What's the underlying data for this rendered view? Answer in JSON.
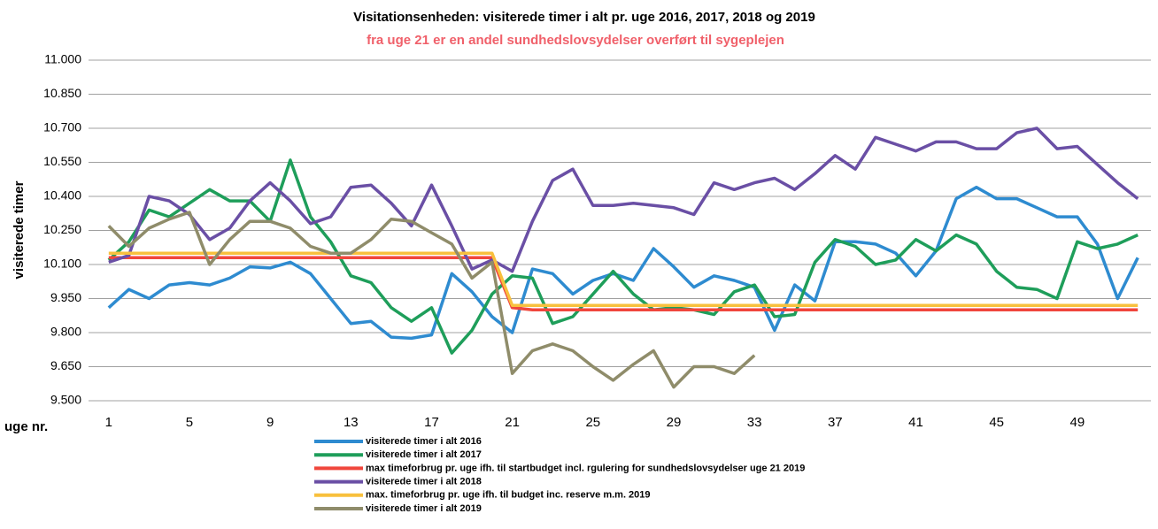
{
  "chart_data": {
    "type": "line",
    "title": "Visitationsenheden: visiterede timer i alt pr. uge 2016, 2017, 2018 og 2019",
    "subtitle": "fra uge 21 er en andel sundhedslovsydelser overført til sygeplejen",
    "y_label": "visiterede timer",
    "x_label": "uge nr.",
    "x": [
      1,
      2,
      3,
      4,
      5,
      6,
      7,
      8,
      9,
      10,
      11,
      12,
      13,
      14,
      15,
      16,
      17,
      18,
      19,
      20,
      21,
      22,
      23,
      24,
      25,
      26,
      27,
      28,
      29,
      30,
      31,
      32,
      33,
      34,
      35,
      36,
      37,
      38,
      39,
      40,
      41,
      42,
      43,
      44,
      45,
      46,
      47,
      48,
      49,
      50,
      51,
      52
    ],
    "xlim": [
      0,
      53
    ],
    "xticks": [
      1,
      5,
      9,
      13,
      17,
      21,
      25,
      29,
      33,
      37,
      41,
      45,
      49
    ],
    "ylim": [
      9500,
      11000
    ],
    "yticks": [
      {
        "value": 9500,
        "label": "9.500"
      },
      {
        "value": 9650,
        "label": "9.650"
      },
      {
        "value": 9800,
        "label": "9.800"
      },
      {
        "value": 9950,
        "label": "9.950"
      },
      {
        "value": 10100,
        "label": "10.100"
      },
      {
        "value": 10250,
        "label": "10.250"
      },
      {
        "value": 10400,
        "label": "10.400"
      },
      {
        "value": 10550,
        "label": "10.550"
      },
      {
        "value": 10700,
        "label": "10.700"
      },
      {
        "value": 10850,
        "label": "10.850"
      },
      {
        "value": 11000,
        "label": "11.000"
      }
    ],
    "grid": true,
    "legend": "bottom",
    "series": [
      {
        "name": "visiterede timer i alt 2016",
        "color": "#2e8bd0",
        "values": [
          9910,
          9990,
          9950,
          10010,
          10020,
          10010,
          10040,
          10090,
          10085,
          10110,
          10060,
          9950,
          9840,
          9850,
          9780,
          9775,
          9790,
          10060,
          9980,
          9870,
          9800,
          10080,
          10060,
          9970,
          10030,
          10060,
          10030,
          10170,
          10090,
          10000,
          10050,
          10030,
          10000,
          9810,
          10010,
          9940,
          10200,
          10200,
          10190,
          10150,
          10050,
          10160,
          10390,
          10440,
          10390,
          10390,
          10350,
          10310,
          10310,
          10190,
          9950,
          10130
        ]
      },
      {
        "name": "visiterede timer i alt 2017",
        "color": "#1e9e5a",
        "values": [
          10120,
          10200,
          10340,
          10310,
          10370,
          10430,
          10380,
          10380,
          10290,
          10560,
          10310,
          10200,
          10050,
          10020,
          9910,
          9850,
          9910,
          9710,
          9810,
          9970,
          10050,
          10040,
          9840,
          9870,
          9970,
          10070,
          9970,
          9900,
          9910,
          9900,
          9880,
          9980,
          10010,
          9870,
          9880,
          10110,
          10210,
          10180,
          10100,
          10120,
          10210,
          10160,
          10230,
          10190,
          10070,
          10000,
          9990,
          9950,
          10200,
          10170,
          10190,
          10230
        ]
      },
      {
        "name": "max timeforbrug pr. uge ifh. til startbudget incl. rgulering for sundhedslovsydelser uge 21 2019",
        "color": "#f0463c",
        "values": [
          10130,
          10130,
          10130,
          10130,
          10130,
          10130,
          10130,
          10130,
          10130,
          10130,
          10130,
          10130,
          10130,
          10130,
          10130,
          10130,
          10130,
          10130,
          10130,
          10130,
          9910,
          9900,
          9900,
          9900,
          9900,
          9900,
          9900,
          9900,
          9900,
          9900,
          9900,
          9900,
          9900,
          9900,
          9900,
          9900,
          9900,
          9900,
          9900,
          9900,
          9900,
          9900,
          9900,
          9900,
          9900,
          9900,
          9900,
          9900,
          9900,
          9900,
          9900,
          9900
        ]
      },
      {
        "name": "visiterede timer i alt 2018",
        "color": "#6a4fa5",
        "values": [
          10110,
          10140,
          10400,
          10380,
          10320,
          10210,
          10260,
          10380,
          10460,
          10380,
          10280,
          10310,
          10440,
          10450,
          10370,
          10270,
          10450,
          10270,
          10080,
          10120,
          10070,
          10290,
          10470,
          10520,
          10360,
          10360,
          10370,
          10360,
          10350,
          10320,
          10460,
          10430,
          10460,
          10480,
          10430,
          10500,
          10580,
          10520,
          10660,
          10630,
          10600,
          10640,
          10640,
          10610,
          10610,
          10680,
          10700,
          10610,
          10620,
          10540,
          10460,
          10390
        ]
      },
      {
        "name": "max. timeforbrug pr. uge ifh. til budget inc. reserve m.m. 2019",
        "color": "#f8c03d",
        "values": [
          10150,
          10150,
          10150,
          10150,
          10150,
          10150,
          10150,
          10150,
          10150,
          10150,
          10150,
          10150,
          10150,
          10150,
          10150,
          10150,
          10150,
          10150,
          10150,
          10150,
          9920,
          9920,
          9920,
          9920,
          9920,
          9920,
          9920,
          9920,
          9920,
          9920,
          9920,
          9920,
          9920,
          9920,
          9920,
          9920,
          9920,
          9920,
          9920,
          9920,
          9920,
          9920,
          9920,
          9920,
          9920,
          9920,
          9920,
          9920,
          9920,
          9920,
          9920,
          9920
        ]
      },
      {
        "name": "visiterede timer i alt 2019",
        "color": "#8f8c6a",
        "values": [
          10270,
          10180,
          10260,
          10300,
          10330,
          10100,
          10210,
          10290,
          10290,
          10260,
          10180,
          10150,
          10150,
          10210,
          10300,
          10290,
          10240,
          10190,
          10040,
          10110,
          9620,
          9720,
          9750,
          9720,
          9650,
          9590,
          9660,
          9720,
          9560,
          9650,
          9650,
          9620,
          9700,
          null,
          null,
          null,
          null,
          null,
          null,
          null,
          null,
          null,
          null,
          null,
          null,
          null,
          null,
          null,
          null,
          null,
          null,
          null
        ]
      }
    ]
  }
}
